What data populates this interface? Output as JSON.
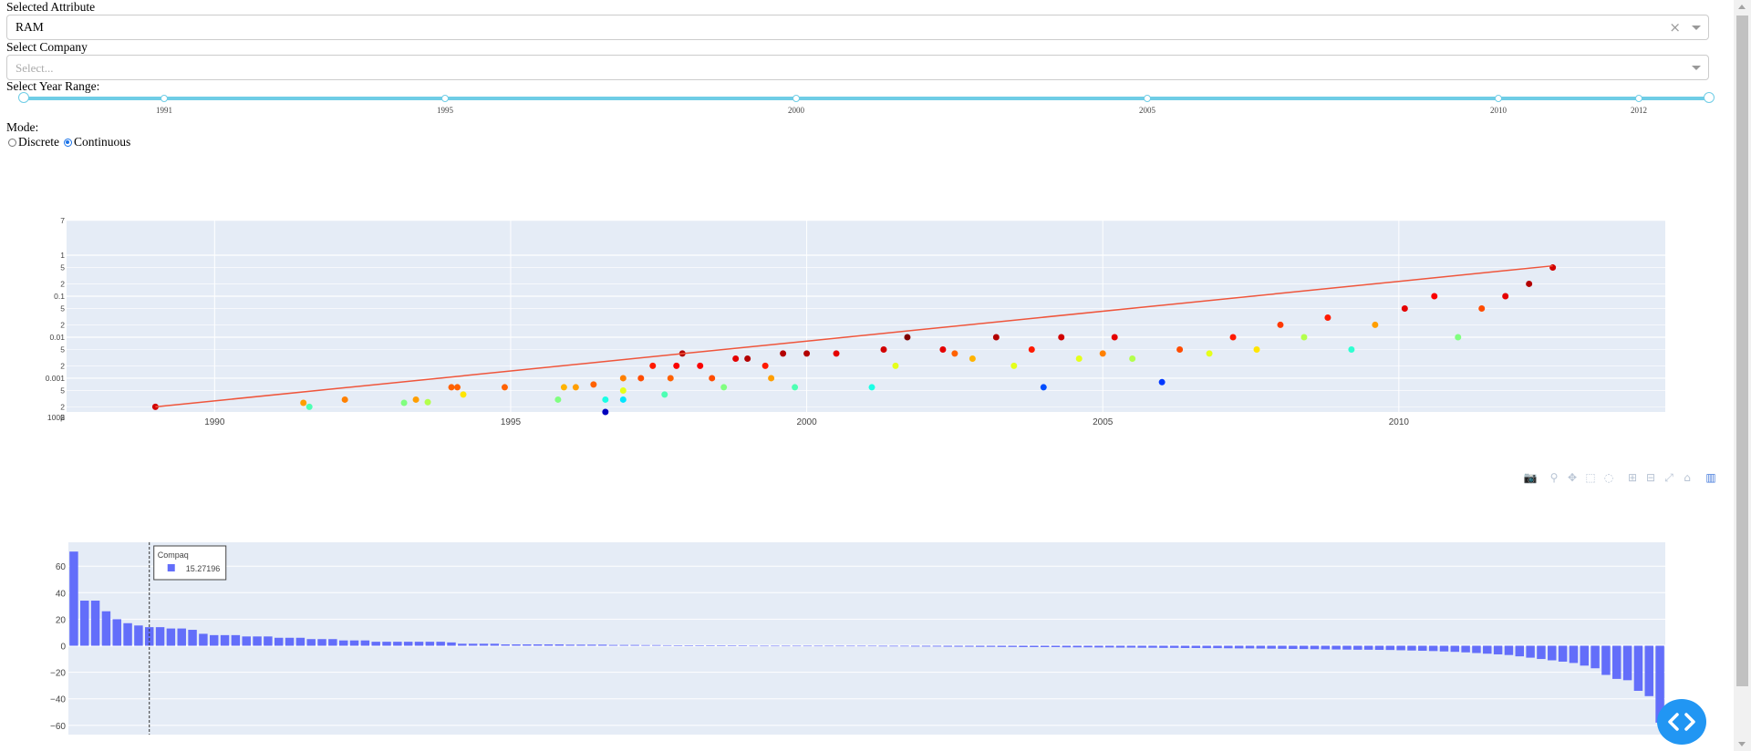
{
  "attribute": {
    "label": "Selected Attribute",
    "value": "RAM"
  },
  "company": {
    "label": "Select Company",
    "placeholder": "Select..."
  },
  "year_range": {
    "label": "Select Year Range:",
    "ticks": [
      "1991",
      "1995",
      "2000",
      "2005",
      "2010",
      "2012"
    ],
    "min": 1989,
    "max": 2013,
    "selected": [
      1989,
      2013
    ]
  },
  "mode": {
    "label": "Mode:",
    "options": [
      "Discrete",
      "Continuous"
    ],
    "selected": "Continuous"
  },
  "toolbar": {
    "icons": [
      "camera-icon",
      "zoom-icon",
      "pan-icon",
      "box-select-icon",
      "lasso-select-icon",
      "zoom-in-icon",
      "zoom-out-icon",
      "autoscale-icon",
      "reset-axes-icon",
      "plotly-logo-icon"
    ]
  },
  "colors": {
    "plot_bg": "#e5ecf6",
    "bar": "#636efa",
    "trend": "#ef553b",
    "slider": "#6fcde6",
    "fab": "#2196f3"
  },
  "chart_data": [
    {
      "type": "scatter",
      "title": "",
      "xlabel": "",
      "ylabel": "",
      "y_scale": "log",
      "xlim": [
        1987.5,
        2014.5
      ],
      "ylim": [
        0.00015,
        7
      ],
      "x_ticks": [
        "1990",
        "1995",
        "2000",
        "2005",
        "2010"
      ],
      "y_ticks": [
        "7",
        "1",
        "5",
        "2",
        "0.1",
        "5",
        "2",
        "0.01",
        "5",
        "2",
        "0.001",
        "5",
        "2",
        "100μ",
        "5",
        "2"
      ],
      "color_scale": "jet",
      "trend": {
        "x": [
          1989.0,
          2012.6
        ],
        "y": [
          0.0002,
          0.55
        ]
      },
      "series": [
        {
          "points": [
            [
              1989.0,
              0.0002,
              0.92
            ],
            [
              1991.5,
              0.00025,
              0.72
            ],
            [
              1991.6,
              0.0002,
              0.45
            ],
            [
              1992.2,
              0.0003,
              0.75
            ],
            [
              1993.2,
              0.00025,
              0.5
            ],
            [
              1993.4,
              0.0003,
              0.72
            ],
            [
              1993.6,
              0.00026,
              0.55
            ],
            [
              1994.0,
              0.0006,
              0.78
            ],
            [
              1994.1,
              0.0006,
              0.78
            ],
            [
              1994.2,
              0.0004,
              0.65
            ],
            [
              1994.9,
              0.0006,
              0.78
            ],
            [
              1995.8,
              0.0003,
              0.5
            ],
            [
              1995.9,
              0.0006,
              0.7
            ],
            [
              1996.1,
              0.0006,
              0.72
            ],
            [
              1996.4,
              0.0007,
              0.78
            ],
            [
              1996.6,
              0.0003,
              0.4
            ],
            [
              1996.6,
              0.00015,
              0.06
            ],
            [
              1996.9,
              0.0003,
              0.35
            ],
            [
              1996.9,
              0.0005,
              0.6
            ],
            [
              1996.9,
              0.001,
              0.75
            ],
            [
              1997.2,
              0.001,
              0.8
            ],
            [
              1997.4,
              0.002,
              0.85
            ],
            [
              1997.6,
              0.0004,
              0.45
            ],
            [
              1997.7,
              0.001,
              0.78
            ],
            [
              1997.8,
              0.002,
              0.88
            ],
            [
              1997.9,
              0.004,
              0.95
            ],
            [
              1998.2,
              0.002,
              0.88
            ],
            [
              1998.4,
              0.001,
              0.8
            ],
            [
              1998.6,
              0.0006,
              0.5
            ],
            [
              1998.8,
              0.003,
              0.9
            ],
            [
              1999.0,
              0.003,
              0.95
            ],
            [
              1999.3,
              0.002,
              0.85
            ],
            [
              1999.4,
              0.001,
              0.72
            ],
            [
              1999.6,
              0.004,
              0.95
            ],
            [
              1999.8,
              0.0006,
              0.45
            ],
            [
              2000.0,
              0.004,
              0.95
            ],
            [
              2000.5,
              0.004,
              0.9
            ],
            [
              2001.1,
              0.0006,
              0.4
            ],
            [
              2001.3,
              0.005,
              0.92
            ],
            [
              2001.5,
              0.002,
              0.6
            ],
            [
              2001.7,
              0.01,
              1.0
            ],
            [
              2002.3,
              0.005,
              0.9
            ],
            [
              2002.5,
              0.004,
              0.78
            ],
            [
              2002.8,
              0.003,
              0.7
            ],
            [
              2003.2,
              0.01,
              0.95
            ],
            [
              2003.5,
              0.002,
              0.6
            ],
            [
              2003.8,
              0.005,
              0.85
            ],
            [
              2004.0,
              0.0006,
              0.2
            ],
            [
              2004.3,
              0.01,
              0.92
            ],
            [
              2004.6,
              0.003,
              0.6
            ],
            [
              2005.0,
              0.004,
              0.75
            ],
            [
              2005.2,
              0.01,
              0.9
            ],
            [
              2005.5,
              0.003,
              0.55
            ],
            [
              2006.0,
              0.0008,
              0.18
            ],
            [
              2006.3,
              0.005,
              0.8
            ],
            [
              2006.8,
              0.004,
              0.6
            ],
            [
              2007.2,
              0.01,
              0.85
            ],
            [
              2007.6,
              0.005,
              0.65
            ],
            [
              2008.0,
              0.02,
              0.82
            ],
            [
              2008.4,
              0.01,
              0.55
            ],
            [
              2008.8,
              0.03,
              0.85
            ],
            [
              2009.2,
              0.005,
              0.42
            ],
            [
              2009.6,
              0.02,
              0.72
            ],
            [
              2010.1,
              0.05,
              0.9
            ],
            [
              2010.6,
              0.1,
              0.88
            ],
            [
              2011.0,
              0.01,
              0.5
            ],
            [
              2011.4,
              0.05,
              0.8
            ],
            [
              2011.8,
              0.1,
              0.9
            ],
            [
              2012.2,
              0.2,
              0.95
            ],
            [
              2012.6,
              0.5,
              0.92
            ]
          ]
        }
      ]
    },
    {
      "type": "bar",
      "title": "",
      "xlabel": "",
      "ylabel": "",
      "ylim": [
        -67,
        78
      ],
      "y_ticks": [
        "60",
        "40",
        "20",
        "0",
        "−20",
        "−40",
        "−60"
      ],
      "hover": {
        "label": "Compaq",
        "value": "15.27196",
        "index": 7
      },
      "values": [
        71,
        34,
        34,
        26,
        20,
        17,
        15.27,
        14,
        14,
        13,
        13,
        12,
        9,
        8,
        8,
        8,
        7,
        7,
        7,
        6,
        6,
        6,
        5,
        5,
        5,
        4,
        4,
        4,
        3,
        3,
        3,
        3,
        3,
        3,
        3,
        2.5,
        1.5,
        1.5,
        1.5,
        1.5,
        1,
        1,
        1,
        1,
        1,
        1,
        0.8,
        0.8,
        0.8,
        0.8,
        0.6,
        0.6,
        0.6,
        0.5,
        0.5,
        0.4,
        0.3,
        0.3,
        0.2,
        0.2,
        0.1,
        0.1,
        0.1,
        -0.1,
        -0.1,
        -0.1,
        -0.2,
        -0.2,
        -0.2,
        -0.3,
        -0.3,
        -0.3,
        -0.4,
        -0.4,
        -0.4,
        -0.5,
        -0.5,
        -0.5,
        -0.6,
        -0.6,
        -0.6,
        -0.7,
        -0.7,
        -0.7,
        -0.8,
        -0.8,
        -0.9,
        -0.9,
        -1,
        -1,
        -1,
        -1,
        -1.2,
        -1.2,
        -1.2,
        -1.3,
        -1.3,
        -1.4,
        -1.4,
        -1.5,
        -1.5,
        -1.6,
        -1.6,
        -1.7,
        -1.7,
        -1.8,
        -1.8,
        -1.9,
        -2,
        -2,
        -2.1,
        -2.2,
        -2.3,
        -2.4,
        -2.5,
        -2.6,
        -2.7,
        -2.8,
        -2.9,
        -3,
        -3,
        -3.1,
        -3.2,
        -3.4,
        -3.6,
        -3.8,
        -4,
        -4.3,
        -4.6,
        -5,
        -5.5,
        -6,
        -6.5,
        -7,
        -8,
        -9,
        -10,
        -11,
        -12,
        -13,
        -15,
        -17,
        -22,
        -25,
        -26,
        -34,
        -38,
        -58
      ]
    }
  ]
}
